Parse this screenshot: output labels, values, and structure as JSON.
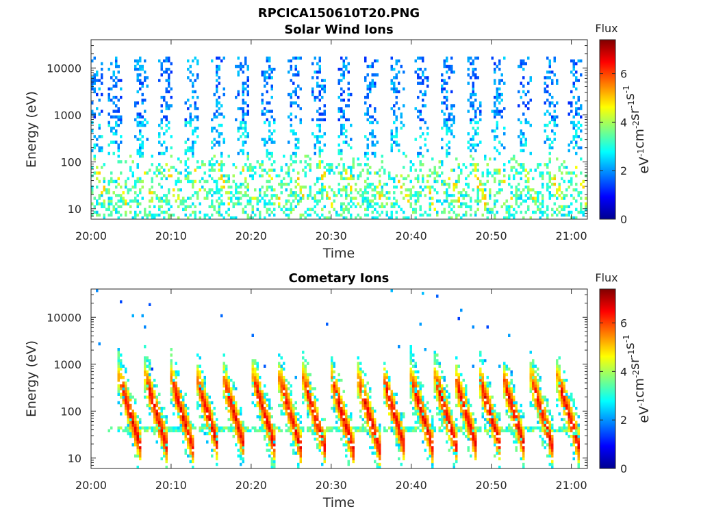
{
  "figure_title": "RPCICA150610T20.PNG",
  "colorbar": {
    "label": "Flux",
    "ticks": [
      "0",
      "2",
      "4",
      "6"
    ],
    "unit_base": "eV",
    "unit_parts": [
      {
        "t": "eV",
        "sup": "-1"
      },
      {
        "t": "cm",
        "sup": "-2"
      },
      {
        "t": "sr",
        "sup": "-1"
      },
      {
        "t": "s",
        "sup": "-1"
      }
    ],
    "range": [
      0,
      7.4
    ],
    "colormap": "jet"
  },
  "chart_data": [
    {
      "type": "heatmap",
      "title": "Solar Wind Ions",
      "xlabel": "Time",
      "ylabel": "Energy (eV)",
      "x_ticks": [
        "20:00",
        "20:10",
        "20:20",
        "20:30",
        "20:40",
        "20:50",
        "21:00"
      ],
      "y_ticks": [
        "10",
        "100",
        "1000",
        "10000"
      ],
      "x_range_minutes": [
        0,
        62
      ],
      "y_scale": "log",
      "y_range_eV": [
        6,
        40000
      ],
      "sweep_times_min": [
        0.5,
        3.0,
        6.2,
        9.4,
        12.6,
        15.8,
        19.0,
        22.2,
        25.4,
        28.6,
        31.8,
        35.0,
        38.2,
        41.4,
        44.6,
        47.8,
        51.0,
        54.2,
        57.4,
        60.6
      ],
      "sweep_peak_flux": 2.2,
      "low_energy_flux_range": [
        2.5,
        4.8
      ],
      "grid": false
    },
    {
      "type": "heatmap",
      "title": "Cometary Ions",
      "xlabel": "Time",
      "ylabel": "Energy (eV)",
      "x_ticks": [
        "20:00",
        "20:10",
        "20:20",
        "20:30",
        "20:40",
        "20:50",
        "21:00"
      ],
      "y_ticks": [
        "10",
        "100",
        "1000",
        "10000"
      ],
      "x_range_minutes": [
        0,
        62
      ],
      "y_scale": "log",
      "y_range_eV": [
        6,
        40000
      ],
      "burst_times_min": [
        4.0,
        7.3,
        10.5,
        13.7,
        17.0,
        20.8,
        24.0,
        27.0,
        30.5,
        33.8,
        37.0,
        40.5,
        43.5,
        46.0,
        49.0,
        52.0,
        55.5,
        58.8
      ],
      "burst_peak_flux": 6.3,
      "band_energy_eV": 40,
      "grid": false
    }
  ]
}
